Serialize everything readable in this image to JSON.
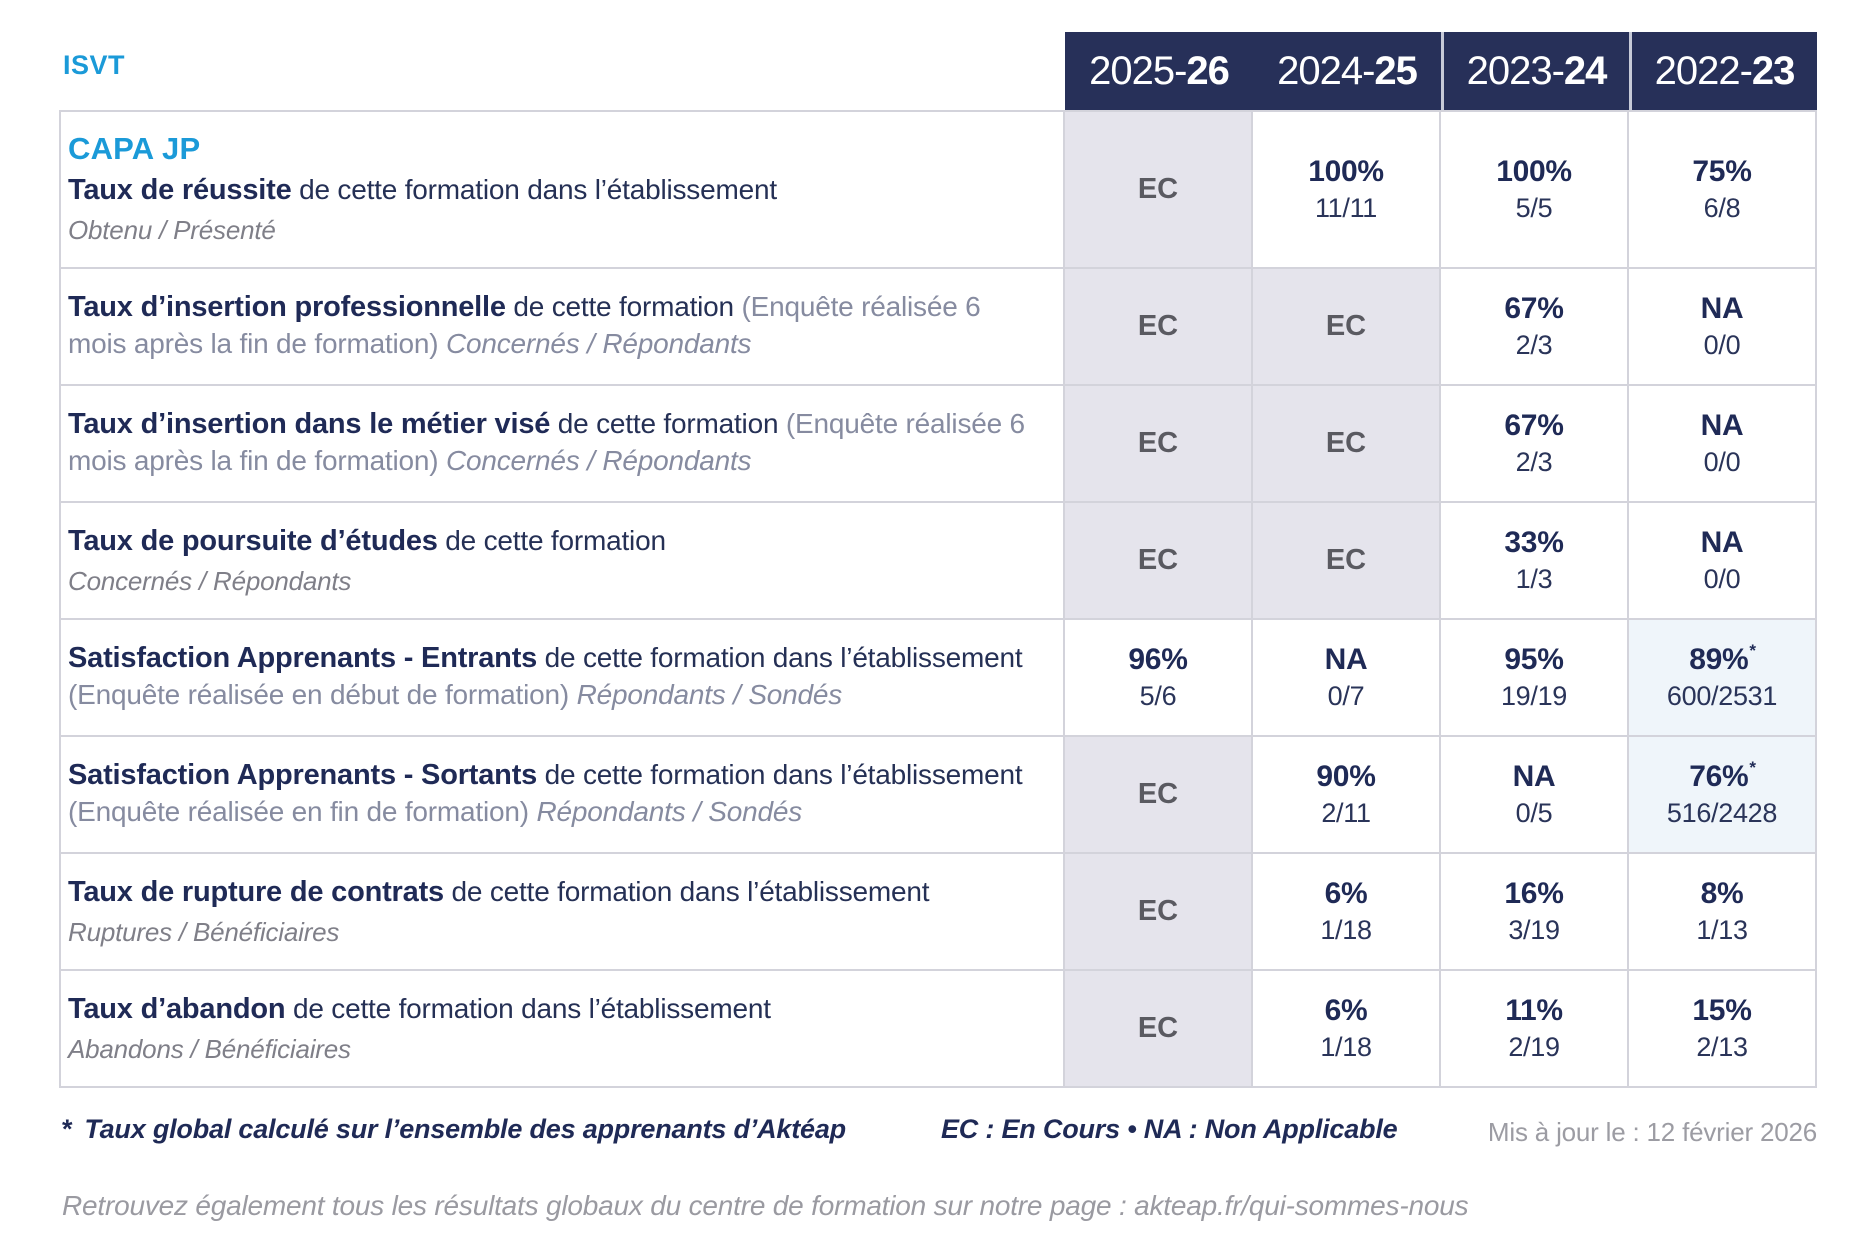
{
  "page": {
    "org": "ISVT"
  },
  "columns": [
    {
      "prefix": "2025-",
      "suffix": "26"
    },
    {
      "prefix": "2024-",
      "suffix": "25"
    },
    {
      "prefix": "2023-",
      "suffix": "24"
    },
    {
      "prefix": "2022-",
      "suffix": "23"
    }
  ],
  "rows": [
    {
      "heading": "CAPA JP",
      "title": "Taux de réussite",
      "desc": "de cette formation dans l’établissement",
      "paren": null,
      "tail": null,
      "sub": "Obtenu / Présenté",
      "cells": [
        {
          "v": "EC",
          "kind": "ec"
        },
        {
          "v": "100%",
          "f": "11/11",
          "kind": "normal"
        },
        {
          "v": "100%",
          "f": "5/5",
          "kind": "normal"
        },
        {
          "v": "75%",
          "f": "6/8",
          "kind": "normal"
        }
      ]
    },
    {
      "heading": null,
      "title": "Taux d’insertion professionnelle",
      "desc": "de cette formation",
      "paren": "(Enquête réalisée 6 mois après la fin de formation)",
      "tail": "Concernés / Répondants",
      "sub": null,
      "cells": [
        {
          "v": "EC",
          "kind": "ec"
        },
        {
          "v": "EC",
          "kind": "ec"
        },
        {
          "v": "67%",
          "f": "2/3",
          "kind": "normal"
        },
        {
          "v": "NA",
          "f": "0/0",
          "kind": "normal"
        }
      ]
    },
    {
      "heading": null,
      "title": "Taux d’insertion dans le métier visé",
      "desc": "de cette formation",
      "paren": "(Enquête réalisée 6 mois après la fin de formation)",
      "tail": "Concernés / Répondants",
      "sub": null,
      "cells": [
        {
          "v": "EC",
          "kind": "ec"
        },
        {
          "v": "EC",
          "kind": "ec"
        },
        {
          "v": "67%",
          "f": "2/3",
          "kind": "normal"
        },
        {
          "v": "NA",
          "f": "0/0",
          "kind": "normal"
        }
      ]
    },
    {
      "heading": null,
      "title": "Taux de poursuite d’études",
      "desc": "de cette formation",
      "paren": null,
      "tail": null,
      "sub": "Concernés / Répondants",
      "cells": [
        {
          "v": "EC",
          "kind": "ec"
        },
        {
          "v": "EC",
          "kind": "ec"
        },
        {
          "v": "33%",
          "f": "1/3",
          "kind": "normal"
        },
        {
          "v": "NA",
          "f": "0/0",
          "kind": "normal"
        }
      ]
    },
    {
      "heading": null,
      "title": "Satisfaction Apprenants - Entrants",
      "desc": "de cette formation dans l’établissement",
      "paren": "(Enquête réalisée en début de formation)",
      "tail": "Répondants / Sondés",
      "sub": null,
      "cells": [
        {
          "v": "96%",
          "f": "5/6",
          "kind": "normal"
        },
        {
          "v": "NA",
          "f": "0/7",
          "kind": "normal"
        },
        {
          "v": "95%",
          "f": "19/19",
          "kind": "normal"
        },
        {
          "v": "89%",
          "star": true,
          "f": "600/2531",
          "kind": "highlight"
        }
      ]
    },
    {
      "heading": null,
      "title": "Satisfaction Apprenants - Sortants",
      "desc": "de cette formation dans l’établissement",
      "paren": "(Enquête réalisée en fin de formation)",
      "tail": "Répondants / Sondés",
      "sub": null,
      "cells": [
        {
          "v": "EC",
          "kind": "ec"
        },
        {
          "v": "90%",
          "f": "2/11",
          "kind": "normal"
        },
        {
          "v": "NA",
          "f": "0/5",
          "kind": "normal"
        },
        {
          "v": "76%",
          "star": true,
          "f": "516/2428",
          "kind": "highlight"
        }
      ]
    },
    {
      "heading": null,
      "title": "Taux de rupture de contrats",
      "desc": "de cette formation dans l’établissement",
      "paren": null,
      "tail": null,
      "sub": "Ruptures / Bénéficiaires",
      "cells": [
        {
          "v": "EC",
          "kind": "ec"
        },
        {
          "v": "6%",
          "f": "1/18",
          "kind": "normal"
        },
        {
          "v": "16%",
          "f": "3/19",
          "kind": "normal"
        },
        {
          "v": "8%",
          "f": "1/13",
          "kind": "normal"
        }
      ]
    },
    {
      "heading": null,
      "title": "Taux d’abandon",
      "desc": "de cette formation dans l’établissement",
      "paren": null,
      "tail": null,
      "sub": "Abandons / Bénéficiaires",
      "cells": [
        {
          "v": "EC",
          "kind": "ec"
        },
        {
          "v": "6%",
          "f": "1/18",
          "kind": "normal"
        },
        {
          "v": "11%",
          "f": "2/19",
          "kind": "normal"
        },
        {
          "v": "15%",
          "f": "2/13",
          "kind": "normal"
        }
      ]
    }
  ],
  "footer": {
    "star": "*",
    "star_note": "Taux global calculé sur l’ensemble des apprenants d’Aktéap",
    "legend": "EC : En Cours  •  NA : Non Applicable",
    "updated": "Mis à jour le : 12 février 2026",
    "bottom_note": "Retrouvez également tous les résultats globaux du centre de formation sur notre page : akteap.fr/qui-sommes-nous"
  },
  "colors": {
    "accent_blue": "#1B9AD8",
    "navy_text": "#1F2A56",
    "header_navy": "#273059",
    "ec_cell_bg": "#E5E4EC",
    "global_rate_cell_bg": "#EFF5FA",
    "grid_line": "#D3D3DB",
    "gray_text": "#868BA0"
  }
}
